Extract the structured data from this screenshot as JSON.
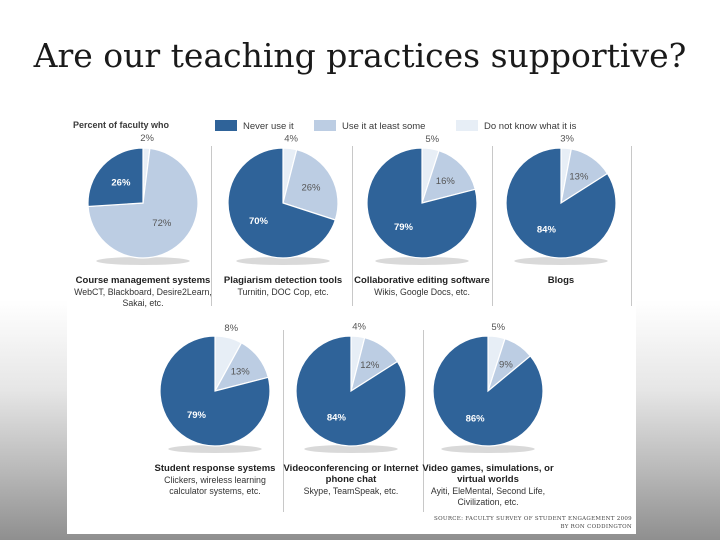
{
  "slide": {
    "title": "Are our teaching practices supportive?"
  },
  "legend": {
    "lead": "Percent of faculty who",
    "items": [
      {
        "label": "Never use it",
        "color": "#2f6399"
      },
      {
        "label": "Use it at least some",
        "color": "#bccde3"
      },
      {
        "label": "Do not know what it is",
        "color": "#e7eef6"
      }
    ]
  },
  "chart_data": {
    "type": "pie",
    "series_names": [
      "Never use it",
      "Use it at least some",
      "Do not know what it is"
    ],
    "colors": [
      "#2f6399",
      "#bccde3",
      "#e7eef6"
    ],
    "pies": [
      {
        "title": "Course management systems",
        "subtitle": "WebCT, Blackboard, Desire2Learn, Sakai, etc.",
        "values": [
          26,
          72,
          2
        ]
      },
      {
        "title": "Plagiarism detection tools",
        "subtitle": "Turnitin, DOC Cop, etc.",
        "values": [
          70,
          26,
          4
        ]
      },
      {
        "title": "Collaborative editing software",
        "subtitle": "Wikis, Google Docs, etc.",
        "values": [
          79,
          16,
          5
        ]
      },
      {
        "title": "Blogs",
        "subtitle": "",
        "values": [
          84,
          13,
          3
        ]
      },
      {
        "title": "Student response systems",
        "subtitle": "Clickers, wireless learning calculator systems, etc.",
        "values": [
          79,
          13,
          8
        ]
      },
      {
        "title": "Videoconferencing or Internet phone chat",
        "subtitle": "Skype, TeamSpeak, etc.",
        "values": [
          84,
          12,
          4
        ]
      },
      {
        "title": "Video games, simulations, or virtual worlds",
        "subtitle": "Ayiti, EleMental, Second Life, Civilization, etc.",
        "values": [
          86,
          9,
          5
        ]
      }
    ]
  },
  "source": {
    "line1": "SOURCE: FACULTY SURVEY OF STUDENT ENGAGEMENT 2009",
    "line2": "BY RON CODDINGTON"
  }
}
